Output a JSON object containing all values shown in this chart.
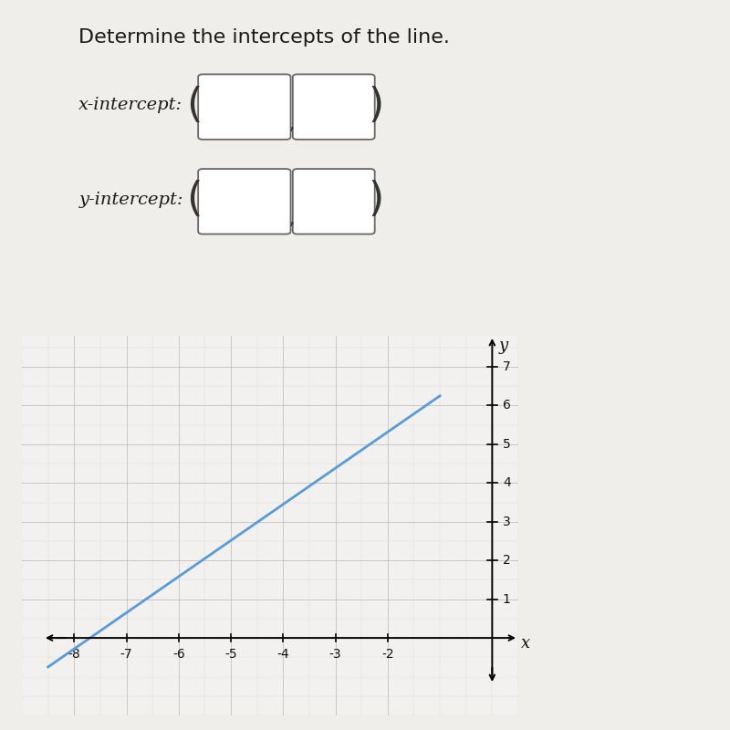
{
  "title": "Determine the intercepts of the line.",
  "x_intercept_label": "x-intercept:",
  "y_intercept_label": "y-intercept:",
  "line_x": [
    -8.5,
    -1.0
  ],
  "line_y": [
    -0.75,
    6.25
  ],
  "line_color": "#5b9bd5",
  "line_width": 2.0,
  "xlim": [
    -8.6,
    0.5
  ],
  "ylim": [
    -1.2,
    7.8
  ],
  "x_ticks": [
    -8,
    -7,
    -6,
    -5,
    -4,
    -3,
    -2
  ],
  "y_ticks": [
    1,
    2,
    3,
    4,
    5,
    6,
    7
  ],
  "grid_minor_color": "#d8d8d8",
  "grid_major_color": "#bbbbbb",
  "bg_color": "#f5f4f2",
  "fig_bg_color": "#f0eeea",
  "plot_bg_color": "#f2f1ef",
  "axis_label_x": "x",
  "axis_label_y": "y",
  "box_color": "#ffffff",
  "box_edge_color": "#666666",
  "title_fontsize": 16,
  "label_fontsize": 14,
  "tick_fontsize": 10
}
